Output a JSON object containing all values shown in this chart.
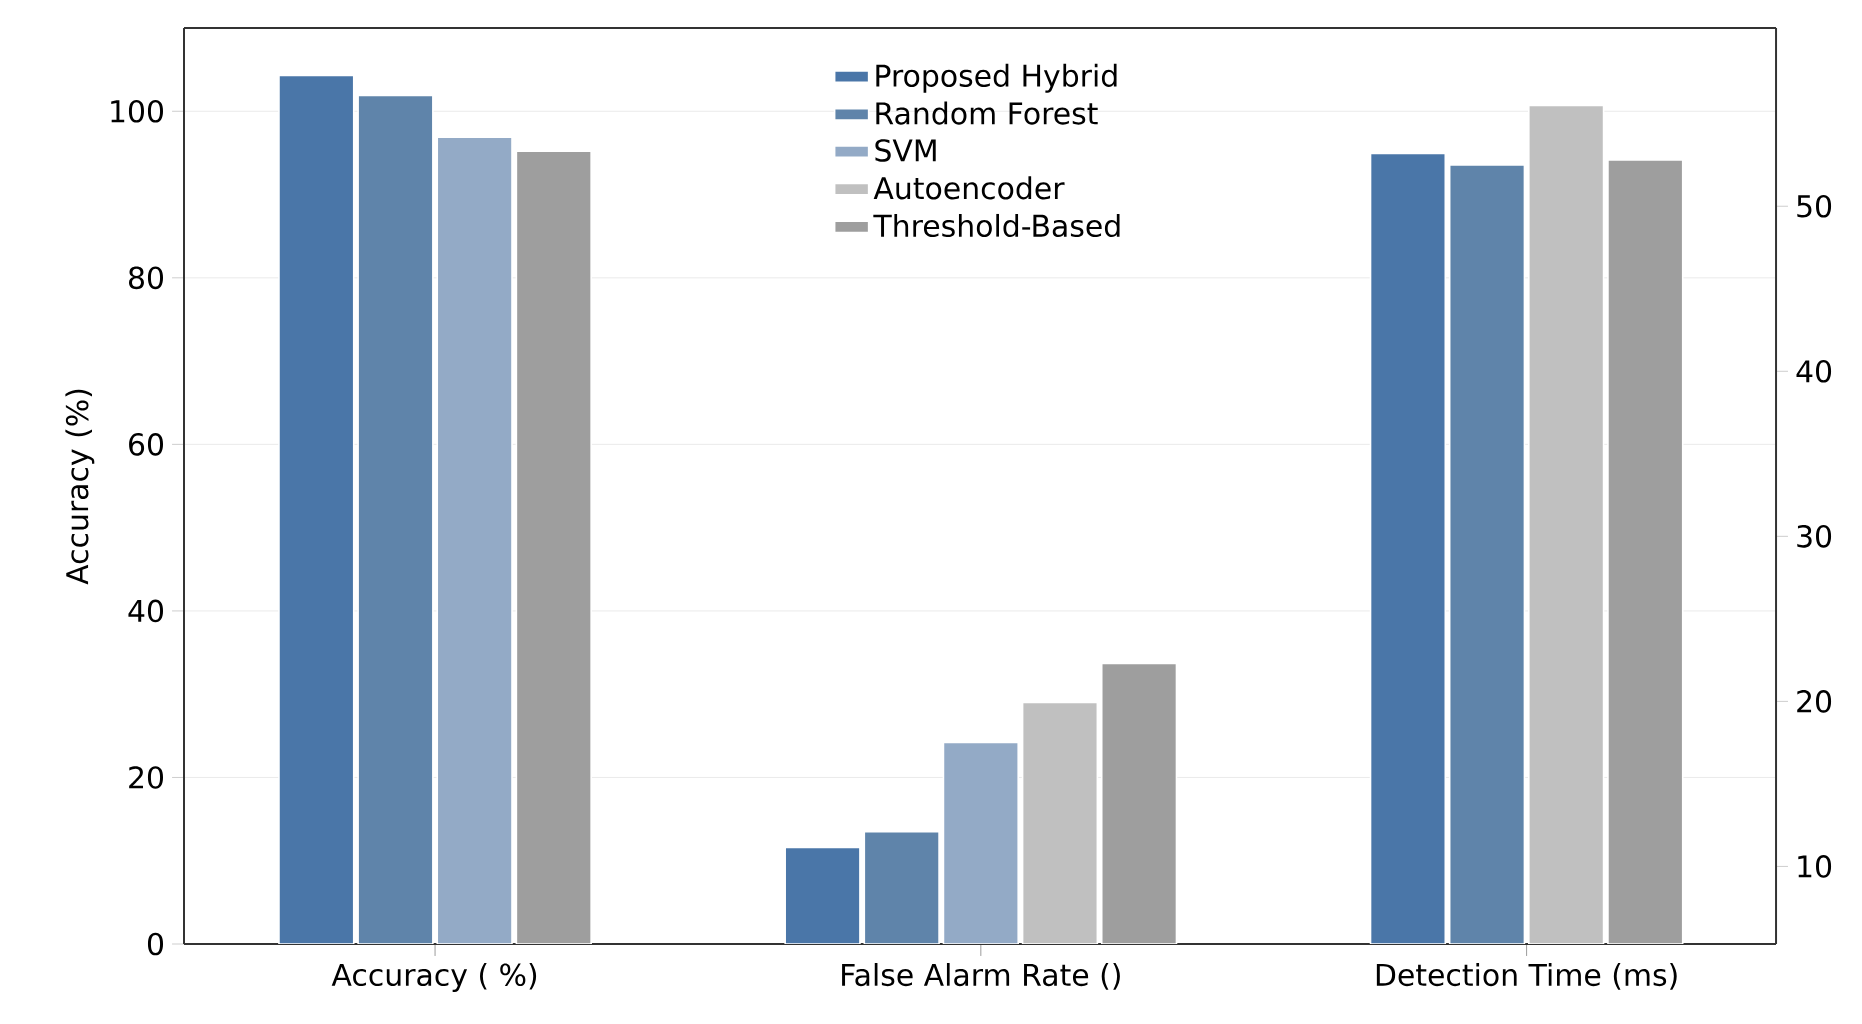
{
  "chart_data": {
    "type": "bar",
    "ylabel": "Accuracy (%)",
    "categories": [
      "Accuracy ( %)",
      "False Alarm Rate ()",
      "Detection Time (ms)"
    ],
    "ylim": [
      0,
      110
    ],
    "yticks": [
      0,
      20,
      40,
      60,
      80,
      100
    ],
    "y2lim": [
      5.3,
      60.8
    ],
    "y2ticks": [
      10,
      20,
      30,
      40,
      50
    ],
    "grid": "y",
    "legend": "top",
    "series": [
      {
        "name": "Proposed Hybrid",
        "color": "#4a76a8",
        "values": [
          104.3,
          11.6,
          null
        ]
      },
      {
        "name": "Random Forest",
        "color": "#5f84aa",
        "values": [
          101.9,
          13.5,
          null
        ]
      },
      {
        "name": "SVM",
        "color": "#93aac6",
        "values": [
          96.9,
          24.2,
          null
        ]
      },
      {
        "name": "Autoencoder",
        "color": "#c0c0c0",
        "values": [
          null,
          29.0,
          null
        ]
      },
      {
        "name": "Threshold-Based",
        "color": "#9e9e9e",
        "values": [
          95.2,
          33.7,
          null
        ]
      },
      {
        "color": "#4a76a8",
        "axis": "y2",
        "values": [
          null,
          null,
          53.2
        ]
      },
      {
        "color": "#5f84aa",
        "axis": "y2",
        "values": [
          null,
          null,
          52.5
        ]
      },
      {
        "color": "#c0c0c0",
        "axis": "y2",
        "values": [
          null,
          null,
          56.1
        ]
      },
      {
        "color": "#9e9e9e",
        "axis": "y2",
        "values": [
          null,
          null,
          52.8
        ]
      }
    ]
  }
}
